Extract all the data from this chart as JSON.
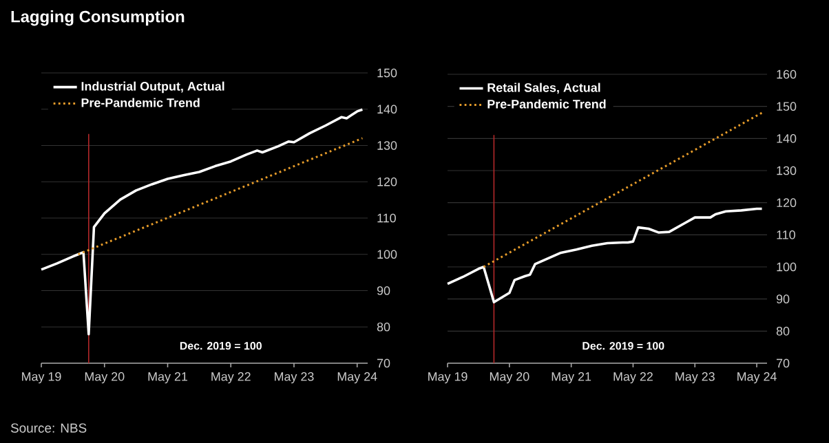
{
  "chart_data": [
    {
      "type": "line",
      "title": "Lagging Consumption",
      "annotations": [
        "Dec. 2019 = 100",
        "Source: NBS"
      ],
      "series": [
        {
          "name": "Industrial Output, Actual",
          "color": "#ffffff",
          "line_style": "solid",
          "x": [
            "2019-05",
            "2019-08",
            "2019-11",
            "2019-12",
            "2020-01",
            "2020-02",
            "2020-03",
            "2020-05",
            "2020-08",
            "2020-11",
            "2021-02",
            "2021-05",
            "2021-08",
            "2021-11",
            "2022-02",
            "2022-05",
            "2022-08",
            "2022-10",
            "2022-11",
            "2023-02",
            "2023-04",
            "2023-05",
            "2023-08",
            "2023-11",
            "2024-02",
            "2024-03",
            "2024-05",
            "2024-06"
          ],
          "values": [
            95.8,
            97.5,
            99.4,
            100,
            100.6,
            78,
            107.5,
            111.3,
            115.1,
            117.6,
            119.3,
            120.8,
            121.8,
            122.7,
            124.3,
            125.6,
            127.5,
            128.6,
            128.1,
            129.8,
            131.1,
            130.9,
            133.4,
            135.5,
            137.8,
            137.5,
            139.4,
            139.9
          ]
        },
        {
          "name": "Pre-Pandemic Trend",
          "color": "#e59b2a",
          "line_style": "dotted",
          "x": [
            "2019-12",
            "2024-06"
          ],
          "values": [
            100,
            132
          ]
        }
      ],
      "xlim": [
        "2019-05",
        "2024-07"
      ],
      "xticks": [
        {
          "value": "2019-05",
          "label": "May 19"
        },
        {
          "value": "2020-05",
          "label": "May 20"
        },
        {
          "value": "2021-05",
          "label": "May 21"
        },
        {
          "value": "2022-05",
          "label": "May 22"
        },
        {
          "value": "2023-05",
          "label": "May 23"
        },
        {
          "value": "2024-05",
          "label": "May 24"
        }
      ],
      "ylim": [
        70,
        150
      ],
      "yticks": [
        70,
        80,
        90,
        100,
        110,
        120,
        130,
        140,
        150
      ],
      "grid": "y",
      "legend": "top left",
      "ref_lines": [
        {
          "axis": "x",
          "value": "2020-02",
          "color": "#b3282a"
        }
      ]
    },
    {
      "type": "line",
      "annotations": [
        "Dec. 2019 = 100"
      ],
      "series": [
        {
          "name": "Retail Sales, Actual",
          "color": "#ffffff",
          "line_style": "solid",
          "x": [
            "2019-05",
            "2019-08",
            "2019-11",
            "2019-12",
            "2020-02",
            "2020-05",
            "2020-06",
            "2020-08",
            "2020-09",
            "2020-10",
            "2020-12",
            "2021-03",
            "2021-06",
            "2021-09",
            "2021-12",
            "2022-03",
            "2022-04",
            "2022-05",
            "2022-06",
            "2022-08",
            "2022-10",
            "2022-12",
            "2023-03",
            "2023-05",
            "2023-08",
            "2023-09",
            "2023-11",
            "2024-02",
            "2024-05",
            "2024-06"
          ],
          "values": [
            94.7,
            96.9,
            99.4,
            100,
            89,
            91.9,
            95.9,
            97.1,
            97.6,
            100.9,
            102.3,
            104.4,
            105.4,
            106.6,
            107.4,
            107.6,
            107.6,
            107.9,
            112.3,
            111.9,
            110.7,
            110.9,
            113.6,
            115.4,
            115.4,
            116.4,
            117.3,
            117.6,
            118.1,
            118.1
          ]
        },
        {
          "name": "Pre-Pandemic Trend",
          "color": "#e59b2a",
          "line_style": "dotted",
          "x": [
            "2019-12",
            "2022-03",
            "2024-06"
          ],
          "values": [
            100,
            124,
            148
          ]
        }
      ],
      "xlim": [
        "2019-05",
        "2024-07"
      ],
      "xticks": [
        {
          "value": "2019-05",
          "label": "May 19"
        },
        {
          "value": "2020-05",
          "label": "May 20"
        },
        {
          "value": "2021-05",
          "label": "May 21"
        },
        {
          "value": "2022-05",
          "label": "May 22"
        },
        {
          "value": "2023-05",
          "label": "May 23"
        },
        {
          "value": "2024-05",
          "label": "May 24"
        }
      ],
      "ylim": [
        70,
        160
      ],
      "yticks": [
        70,
        80,
        90,
        100,
        110,
        120,
        130,
        140,
        150,
        160
      ],
      "grid": "y",
      "legend": "top left",
      "ref_lines": [
        {
          "axis": "x",
          "value": "2020-02",
          "color": "#b3282a"
        }
      ]
    }
  ]
}
